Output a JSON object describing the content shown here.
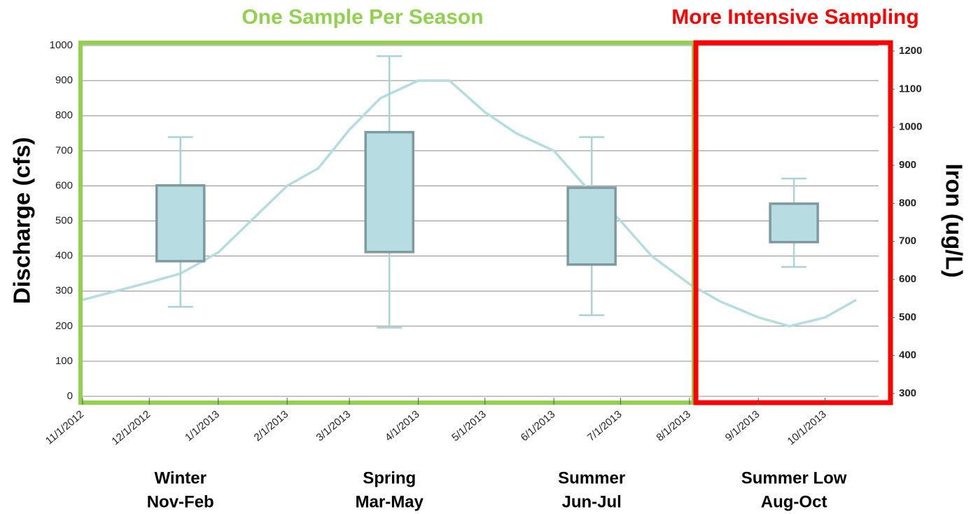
{
  "chart_data": {
    "type": "line",
    "annotations": [
      {
        "text": "One Sample Per Season",
        "color": "#92d050"
      },
      {
        "text": "More Intensive Sampling",
        "color": "#ff0000"
      }
    ],
    "y_label": "Discharge (cfs)",
    "y2_label": "Iron (ug/L)",
    "xlim": [
      "2012-11-01",
      "2013-11-01"
    ],
    "xticks": [
      {
        "value": "2012-11-01",
        "label": "11/1/2012"
      },
      {
        "value": "2012-12-01",
        "label": "12/1/2012"
      },
      {
        "value": "2013-01-01",
        "label": "1/1/2013"
      },
      {
        "value": "2013-02-01",
        "label": "2/1/2013"
      },
      {
        "value": "2013-03-01",
        "label": "3/1/2013"
      },
      {
        "value": "2013-04-01",
        "label": "4/1/2013"
      },
      {
        "value": "2013-05-01",
        "label": "5/1/2013"
      },
      {
        "value": "2013-06-01",
        "label": "6/1/2013"
      },
      {
        "value": "2013-07-01",
        "label": "7/1/2013"
      },
      {
        "value": "2013-08-01",
        "label": "8/1/2013"
      },
      {
        "value": "2013-09-01",
        "label": "9/1/2013"
      },
      {
        "value": "2013-10-01",
        "label": "10/1/2013"
      }
    ],
    "ylim": [
      0,
      1000
    ],
    "yticks": [
      0,
      100,
      200,
      300,
      400,
      500,
      600,
      700,
      800,
      900,
      1000
    ],
    "y2lim": [
      300,
      1200
    ],
    "y2ticks": [
      300,
      400,
      500,
      600,
      700,
      800,
      900,
      1000,
      1100,
      1200
    ],
    "grid": true,
    "series": [
      {
        "name": "Discharge",
        "color": "#b3dde0",
        "x": [
          "2012-11-01",
          "2012-12-01",
          "2012-12-15",
          "2013-01-01",
          "2013-02-01",
          "2013-02-15",
          "2013-03-01",
          "2013-03-15",
          "2013-04-01",
          "2013-04-15",
          "2013-05-01",
          "2013-05-15",
          "2013-06-01",
          "2013-06-15",
          "2013-07-01",
          "2013-07-15",
          "2013-08-01",
          "2013-08-15",
          "2013-09-01",
          "2013-09-15",
          "2013-10-01",
          "2013-10-15"
        ],
        "values": [
          275,
          325,
          350,
          410,
          600,
          650,
          760,
          850,
          900,
          900,
          810,
          750,
          700,
          600,
          500,
          400,
          320,
          270,
          225,
          200,
          225,
          275
        ]
      }
    ],
    "boxes": {
      "name": "Iron",
      "axis": "y2",
      "fill": "#b7dde3",
      "stroke": "#7f9a9e",
      "whisker_color": "#a9d3d6",
      "x": [
        "2012-12-15",
        "2013-03-19",
        "2013-06-18",
        "2013-09-17"
      ],
      "low": [
        528,
        473,
        506,
        633
      ],
      "q1": [
        648,
        672,
        639,
        698
      ],
      "q3": [
        847,
        987,
        841,
        799
      ],
      "high": [
        974,
        1187,
        974,
        865
      ]
    },
    "seasons": [
      {
        "name": "Winter",
        "months": "Nov-Feb"
      },
      {
        "name": "Spring",
        "months": "Mar-May"
      },
      {
        "name": "Summer",
        "months": "Jun-Jul"
      },
      {
        "name": "Summer Low",
        "months": "Aug-Oct"
      }
    ]
  }
}
